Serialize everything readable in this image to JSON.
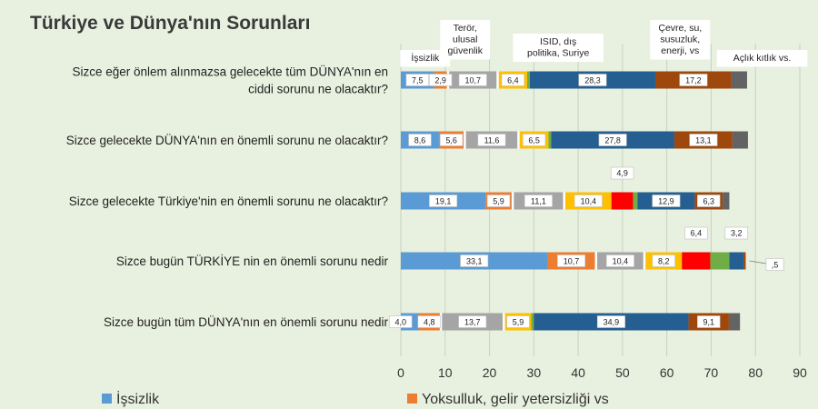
{
  "chart_data": {
    "type": "bar",
    "stacked": true,
    "orientation": "horizontal",
    "title": "Türkiye ve Dünya'nın Sorunları",
    "categories": [
      [
        "Sizce eğer önlem alınmazsa gelecekte tüm DÜNYA'nın en",
        "ciddi sorunu ne olacaktır?"
      ],
      [
        "Sizce gelecekte DÜNYA'nın en önemli sorunu ne olacaktır?"
      ],
      [
        "Sizce gelecekte Türkiye'nin en önemli sorunu ne olacaktır?"
      ],
      [
        "Sizce bugün TÜRKİYE nin en önemli sorunu nedir"
      ],
      [
        "Sizce bugün tüm DÜNYA'nın en önemli sorunu nedir"
      ]
    ],
    "xlim": [
      0,
      90
    ],
    "xticks": [
      0,
      10,
      20,
      30,
      40,
      50,
      60,
      70,
      80,
      90
    ],
    "grid": true,
    "legend_position": "bottom",
    "series": [
      {
        "name": "İşsizlik",
        "color": "#5b9bd5",
        "values": [
          7.5,
          8.6,
          19.1,
          33.1,
          4.0
        ],
        "labels": [
          "7,5",
          "8,6",
          "19,1",
          "33,1",
          "4,0"
        ]
      },
      {
        "name": "Yoksulluk, gelir yetersizliği vs",
        "color": "#ed7d31",
        "values": [
          2.9,
          5.6,
          5.9,
          10.7,
          4.8
        ],
        "labels": [
          "2,9",
          "5,6",
          "5,9",
          "10,7",
          "4,8"
        ]
      },
      {
        "color": "#ffffff",
        "values": [
          0.5,
          0.5,
          0.5,
          0.5,
          0.5
        ],
        "labels": [
          "",
          "",
          "",
          "",
          ""
        ]
      },
      {
        "color": "#a5a5a5",
        "values": [
          10.7,
          11.6,
          11.1,
          10.4,
          13.7
        ],
        "labels": [
          "10,7",
          "11,6",
          "11,1",
          "10,4",
          "13,7"
        ]
      },
      {
        "color": "#ffffff",
        "values": [
          0.5,
          0.5,
          0.5,
          0.5,
          0.5
        ],
        "labels": [
          "",
          "",
          "",
          "",
          ""
        ]
      },
      {
        "color": "#ffc000",
        "values": [
          6.4,
          6.5,
          10.4,
          8.2,
          5.9
        ],
        "labels": [
          "6,4",
          "6,5",
          "10,4",
          "8,2",
          "5,9"
        ]
      },
      {
        "color": "#ff0000",
        "values": [
          0.0,
          0.0,
          4.9,
          6.4,
          0.0
        ],
        "labels": [
          "",
          "",
          "4,9",
          "6,4",
          ""
        ]
      },
      {
        "color": "#70ad47",
        "values": [
          0.6,
          0.6,
          1.0,
          4.3,
          0.6
        ],
        "labels": [
          "",
          "",
          "",
          "",
          ""
        ]
      },
      {
        "color": "#255e91",
        "values": [
          28.3,
          27.8,
          12.9,
          3.2,
          34.9
        ],
        "labels": [
          "28,3",
          "27,8",
          "12,9",
          "3,2",
          "34,9"
        ]
      },
      {
        "color": "#9e480e",
        "values": [
          17.2,
          13.1,
          6.3,
          0.5,
          9.1
        ],
        "labels": [
          "17,2",
          "13,1",
          "6,3",
          ",5",
          "9,1"
        ]
      },
      {
        "color": "#636363",
        "values": [
          3.5,
          3.5,
          1.5,
          0.0,
          2.5
        ],
        "labels": [
          "",
          "",
          "",
          "",
          ""
        ]
      }
    ],
    "annotations": [
      {
        "lines": [
          "İşsizlik"
        ],
        "x": 5.5
      },
      {
        "lines": [
          "Terör,",
          "ulusal",
          "güvenlik"
        ],
        "x": 14.5
      },
      {
        "lines": [
          "ISID, dış",
          "politika, Suriye"
        ],
        "x": 35.5
      },
      {
        "lines": [
          "Çevre, su,",
          "susuzluk,",
          "enerji, vs"
        ],
        "x": 63.0
      },
      {
        "lines": [
          "Açlık kıtlık vs."
        ],
        "x": 81.5
      }
    ],
    "legend": [
      {
        "label": "İşsizlik",
        "color": "#5b9bd5"
      },
      {
        "label": "Yoksulluk, gelir yetersizliği vs",
        "color": "#ed7d31"
      }
    ]
  }
}
